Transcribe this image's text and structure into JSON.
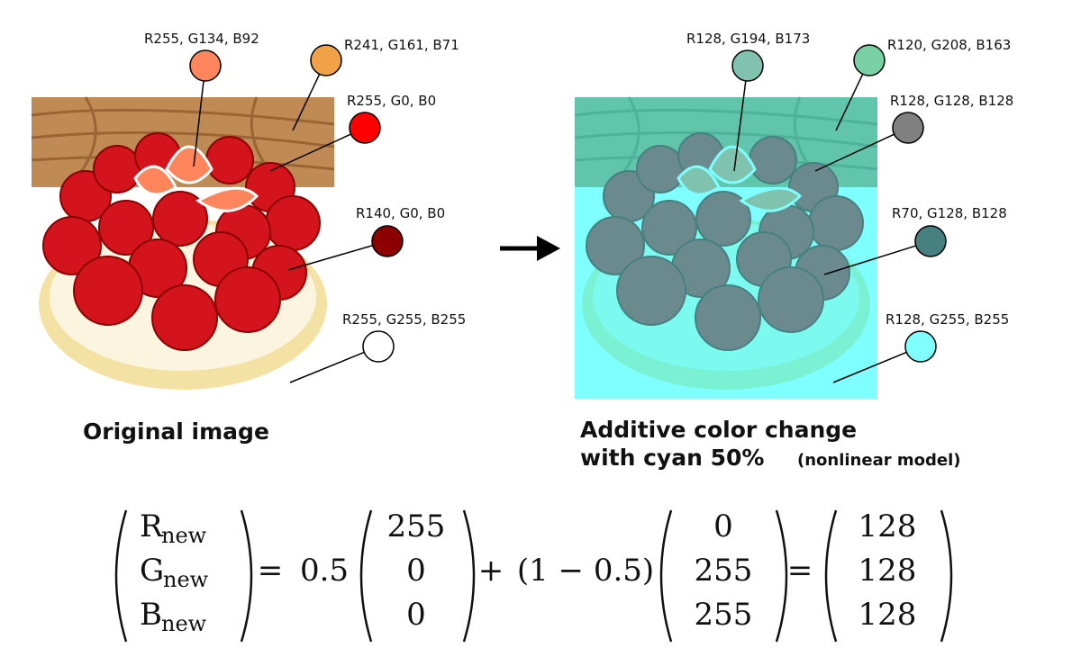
{
  "left": {
    "caption": "Original image",
    "swatches": [
      {
        "label": "R255, G134, B92",
        "color": "#ff865c"
      },
      {
        "label": "R241, G161, B71",
        "color": "#f1a147"
      },
      {
        "label": "R255, G0, B0",
        "color": "#ff0000"
      },
      {
        "label": "R140, G0, B0",
        "color": "#8c0000"
      },
      {
        "label": "R255, G255, B255",
        "color": "#ffffff"
      }
    ]
  },
  "right": {
    "caption_line1": "Additive color change",
    "caption_line2": "with cyan 50%",
    "caption_note": "(nonlinear model)",
    "swatches": [
      {
        "label": "R128, G194, B173",
        "color": "#80c2ad"
      },
      {
        "label": "R120, G208, B163",
        "color": "#78d0a3"
      },
      {
        "label": "R128, G128, B128",
        "color": "#808080"
      },
      {
        "label": "R70, G128, B128",
        "color": "#468080"
      },
      {
        "label": "R128, G255, B255",
        "color": "#80ffff"
      }
    ]
  },
  "equation": {
    "lhs": [
      {
        "symbol": "R",
        "subscript": "new"
      },
      {
        "symbol": "G",
        "subscript": "new"
      },
      {
        "symbol": "B",
        "subscript": "new"
      }
    ],
    "operators": [
      "=",
      "+",
      "="
    ],
    "coefficient_1": 0.5,
    "vector_1": [
      255,
      0,
      0
    ],
    "coefficient_2": "(1 − 0.5)",
    "vector_2": [
      0,
      255,
      255
    ],
    "result": [
      128,
      128,
      128
    ]
  }
}
